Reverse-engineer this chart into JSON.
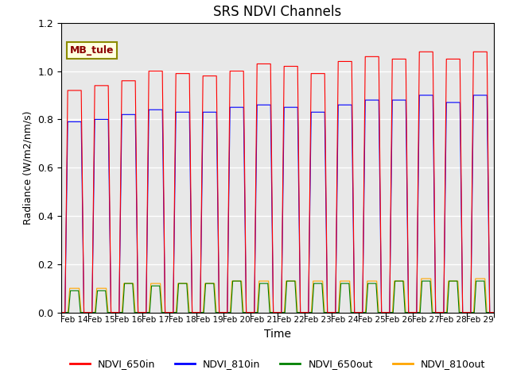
{
  "title": "SRS NDVI Channels",
  "xlabel": "Time",
  "ylabel": "Radiance (W/m2/nm/s)",
  "ylim": [
    0.0,
    1.2
  ],
  "annotation": "MB_tule",
  "bg_color": "#e8e8e8",
  "tick_labels": [
    "Feb 14",
    "Feb 15",
    "Feb 16",
    "Feb 17",
    "Feb 18",
    "Feb 19",
    "Feb 20",
    "Feb 21",
    "Feb 22",
    "Feb 23",
    "Feb 24",
    "Feb 25",
    "Feb 26",
    "Feb 27",
    "Feb 28",
    "Feb 29"
  ],
  "legend_labels": [
    "NDVI_650in",
    "NDVI_810in",
    "NDVI_650out",
    "NDVI_810out"
  ],
  "legend_colors": [
    "red",
    "blue",
    "green",
    "orange"
  ],
  "num_days": 16,
  "day_peaks_650in": [
    0.92,
    0.94,
    0.96,
    1.0,
    0.99,
    0.98,
    1.0,
    1.03,
    1.02,
    0.99,
    1.04,
    1.06,
    1.05,
    1.08,
    1.05,
    1.08
  ],
  "day_peaks_810in": [
    0.79,
    0.8,
    0.82,
    0.84,
    0.83,
    0.83,
    0.85,
    0.86,
    0.85,
    0.83,
    0.86,
    0.88,
    0.88,
    0.9,
    0.87,
    0.9
  ],
  "day_peaks_650out": [
    0.09,
    0.09,
    0.12,
    0.11,
    0.12,
    0.12,
    0.13,
    0.12,
    0.13,
    0.12,
    0.12,
    0.12,
    0.13,
    0.13,
    0.13,
    0.13
  ],
  "day_peaks_810out": [
    0.1,
    0.1,
    0.12,
    0.12,
    0.12,
    0.12,
    0.13,
    0.13,
    0.13,
    0.13,
    0.13,
    0.13,
    0.13,
    0.14,
    0.13,
    0.14
  ]
}
